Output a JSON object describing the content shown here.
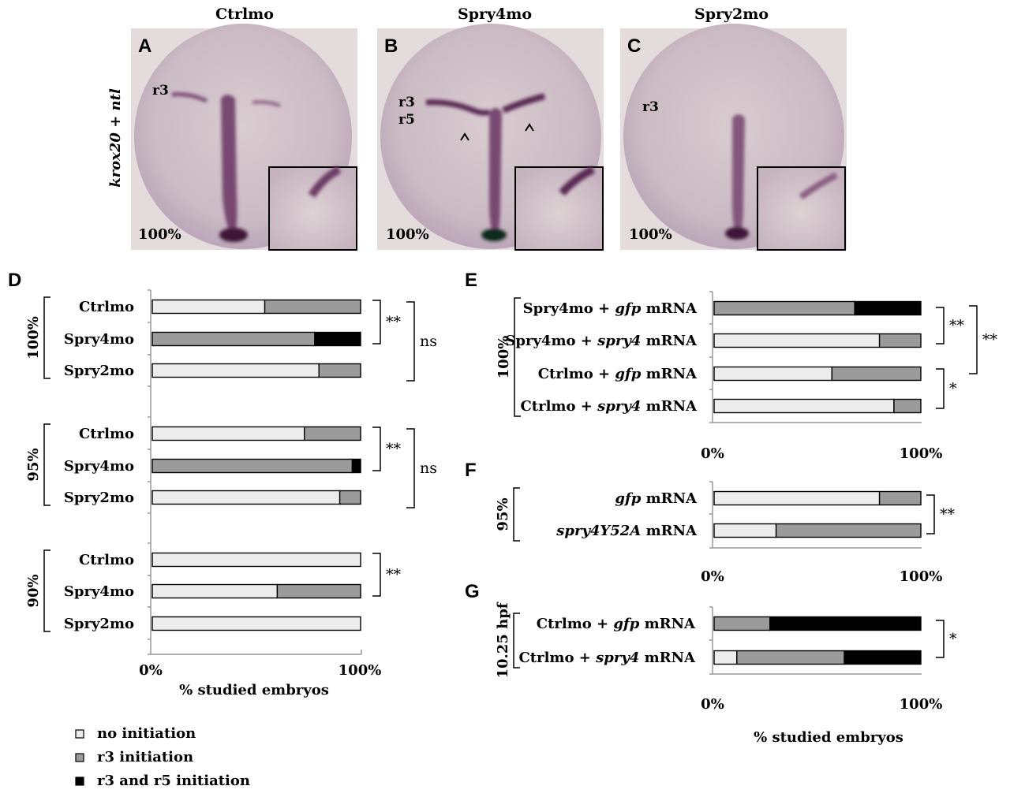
{
  "colors": {
    "no_initiation": "#ececec",
    "r3_initiation": "#9b9b9b",
    "r3_r5_initiation": "#000000",
    "embryo_bg": "#ccbcc4",
    "stain": "#5a2a55"
  },
  "photos": {
    "ylabel": "krox20 + ntl",
    "panels": [
      {
        "title": "Ctrlmo",
        "letter": "A",
        "pct": "100%",
        "labels": [
          "r3"
        ]
      },
      {
        "title": "Spry4mo",
        "letter": "B",
        "pct": "100%",
        "labels": [
          "r3",
          "r5"
        ],
        "arrow": "^"
      },
      {
        "title": "Spry2mo",
        "letter": "C",
        "pct": "100%",
        "labels": [
          "r3"
        ]
      }
    ]
  },
  "legend": {
    "items": [
      {
        "label": "no initiation",
        "color_key": "no_initiation"
      },
      {
        "label": "r3 initiation",
        "color_key": "r3_initiation"
      },
      {
        "label": "r3 and r5 initiation",
        "color_key": "r3_r5_initiation"
      }
    ]
  },
  "chart_data": [
    {
      "panel": "D",
      "type": "bar",
      "orientation": "horizontal",
      "stacked": true,
      "xlabel": "% studied embryos",
      "x_ticks": [
        "0%",
        "100%"
      ],
      "xlim": [
        0,
        100
      ],
      "groups": [
        {
          "label": "100%",
          "categories": [
            "Ctrlmo",
            "Spry4mo",
            "Spry2mo"
          ],
          "series": [
            {
              "name": "no initiation",
              "values": [
                54,
                0,
                80
              ]
            },
            {
              "name": "r3 initiation",
              "values": [
                46,
                78,
                20
              ]
            },
            {
              "name": "r3 and r5 initiation",
              "values": [
                0,
                22,
                0
              ]
            }
          ],
          "significance": [
            {
              "label": "**",
              "between": [
                "Ctrlmo",
                "Spry4mo"
              ]
            },
            {
              "label": "ns",
              "between": [
                "Ctrlmo",
                "Spry2mo"
              ]
            }
          ]
        },
        {
          "label": "95%",
          "categories": [
            "Ctrlmo",
            "Spry4mo",
            "Spry2mo"
          ],
          "series": [
            {
              "name": "no initiation",
              "values": [
                73,
                0,
                90
              ]
            },
            {
              "name": "r3 initiation",
              "values": [
                27,
                96,
                10
              ]
            },
            {
              "name": "r3 and r5 initiation",
              "values": [
                0,
                4,
                0
              ]
            }
          ],
          "significance": [
            {
              "label": "**",
              "between": [
                "Ctrlmo",
                "Spry4mo"
              ]
            },
            {
              "label": "ns",
              "between": [
                "Ctrlmo",
                "Spry2mo"
              ]
            }
          ]
        },
        {
          "label": "90%",
          "categories": [
            "Ctrlmo",
            "Spry4mo",
            "Spry2mo"
          ],
          "series": [
            {
              "name": "no initiation",
              "values": [
                100,
                60,
                100
              ]
            },
            {
              "name": "r3 initiation",
              "values": [
                0,
                40,
                0
              ]
            },
            {
              "name": "r3 and r5 initiation",
              "values": [
                0,
                0,
                0
              ]
            }
          ],
          "significance": [
            {
              "label": "**",
              "between": [
                "Ctrlmo",
                "Spry4mo"
              ]
            }
          ]
        }
      ]
    },
    {
      "panel": "E",
      "type": "bar",
      "orientation": "horizontal",
      "stacked": true,
      "x_ticks": [
        "0%",
        "100%"
      ],
      "xlim": [
        0,
        100
      ],
      "group_label": "100%",
      "categories": [
        {
          "pre": "Spry4mo + ",
          "em": "gfp",
          "post": " mRNA"
        },
        {
          "pre": "Spry4mo + ",
          "em": "spry4",
          "post": " mRNA"
        },
        {
          "pre": "Ctrlmo + ",
          "em": "gfp",
          "post": " mRNA"
        },
        {
          "pre": "Ctrlmo + ",
          "em": "spry4",
          "post": " mRNA"
        }
      ],
      "series": [
        {
          "name": "no initiation",
          "values": [
            0,
            80,
            57,
            87
          ]
        },
        {
          "name": "r3 initiation",
          "values": [
            68,
            20,
            43,
            13
          ]
        },
        {
          "name": "r3 and r5 initiation",
          "values": [
            32,
            0,
            0,
            0
          ]
        }
      ],
      "significance": [
        {
          "label": "**",
          "between": [
            0,
            1
          ]
        },
        {
          "label": "*",
          "between": [
            2,
            3
          ]
        },
        {
          "label": "**",
          "between": [
            0,
            2
          ]
        }
      ]
    },
    {
      "panel": "F",
      "type": "bar",
      "orientation": "horizontal",
      "stacked": true,
      "x_ticks": [
        "0%",
        "100%"
      ],
      "xlim": [
        0,
        100
      ],
      "group_label": "95%",
      "categories": [
        {
          "pre": "",
          "em": "gfp",
          "post": " mRNA"
        },
        {
          "pre": "",
          "em": "spry4Y52A",
          "post": " mRNA"
        }
      ],
      "series": [
        {
          "name": "no initiation",
          "values": [
            80,
            30
          ]
        },
        {
          "name": "r3 initiation",
          "values": [
            20,
            70
          ]
        },
        {
          "name": "r3 and r5 initiation",
          "values": [
            0,
            0
          ]
        }
      ],
      "significance": [
        {
          "label": "**",
          "between": [
            0,
            1
          ]
        }
      ]
    },
    {
      "panel": "G",
      "type": "bar",
      "orientation": "horizontal",
      "stacked": true,
      "xlabel": "% studied embryos",
      "x_ticks": [
        "0%",
        "100%"
      ],
      "xlim": [
        0,
        100
      ],
      "group_label": "10.25 hpf",
      "categories": [
        {
          "pre": "Ctrlmo + ",
          "em": "gfp",
          "post": " mRNA"
        },
        {
          "pre": "Ctrlmo + ",
          "em": "spry4",
          "post": " mRNA"
        }
      ],
      "series": [
        {
          "name": "no initiation",
          "values": [
            0,
            11
          ]
        },
        {
          "name": "r3 initiation",
          "values": [
            27,
            52
          ]
        },
        {
          "name": "r3 and r5 initiation",
          "values": [
            73,
            37
          ]
        }
      ],
      "significance": [
        {
          "label": "*",
          "between": [
            0,
            1
          ]
        }
      ]
    }
  ]
}
